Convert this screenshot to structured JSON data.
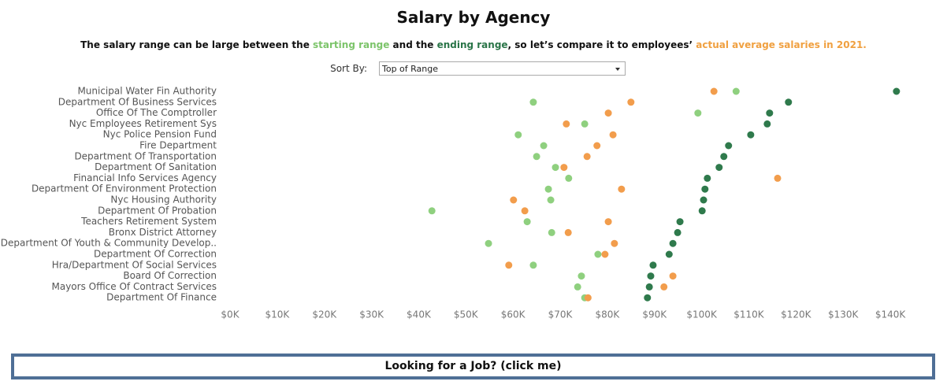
{
  "chart_data": {
    "type": "dot",
    "title": "Salary by Agency",
    "subtitle": [
      {
        "text": "The salary range can be large between the ",
        "color": "#111111"
      },
      {
        "text": "starting range",
        "color": "#7cc46a"
      },
      {
        "text": " and the ",
        "color": "#111111"
      },
      {
        "text": "ending range",
        "color": "#2a7548"
      },
      {
        "text": ", so let’s compare it to employees’ ",
        "color": "#111111"
      },
      {
        "text": "actual average salaries in 2021.",
        "color": "#f0a040"
      }
    ],
    "sort_label": "Sort By:",
    "sort_value": "Top of Range",
    "categories": [
      "Municipal Water Fin Authority",
      "Department Of Business Services",
      "Office Of The Comptroller",
      "Nyc Employees Retirement Sys",
      "Nyc Police Pension Fund",
      "Fire Department",
      "Department Of Transportation",
      "Department Of Sanitation",
      "Financial Info Services Agency",
      "Department Of Environment Protection",
      "Nyc Housing Authority",
      "Department Of Probation",
      "Teachers Retirement System",
      "Bronx District Attorney",
      "Department Of Youth & Community Develop..",
      "Department Of Correction",
      "Hra/Department Of Social Services",
      "Board Of Correction",
      "Mayors Office Of Contract Services",
      "Department Of Finance"
    ],
    "series": [
      {
        "color": "#8fd07f",
        "values": [
          107.3,
          64.3,
          99.2,
          75.2,
          61.1,
          66.5,
          65.0,
          69.0,
          71.8,
          67.5,
          68.0,
          42.8,
          63.0,
          68.2,
          54.8,
          78.0,
          64.3,
          74.5,
          73.7,
          75.2
        ]
      },
      {
        "color": "#2f7a4c",
        "values": [
          141.3,
          118.4,
          114.4,
          113.9,
          110.4,
          105.7,
          104.7,
          103.7,
          101.2,
          100.7,
          100.4,
          100.1,
          95.4,
          94.9,
          93.9,
          93.1,
          89.7,
          89.2,
          88.9,
          88.5
        ]
      },
      {
        "color": "#f29d4c",
        "values": [
          102.6,
          85.0,
          80.2,
          71.3,
          81.2,
          77.8,
          75.7,
          70.8,
          116.1,
          83.0,
          60.1,
          62.5,
          80.2,
          71.7,
          81.5,
          79.5,
          59.1,
          93.9,
          92.0,
          75.9
        ]
      }
    ],
    "xlim": [
      0,
      145
    ],
    "xticks": [
      {
        "value": 0,
        "label": "$0K"
      },
      {
        "value": 10,
        "label": "$10K"
      },
      {
        "value": 20,
        "label": "$20K"
      },
      {
        "value": 30,
        "label": "$30K"
      },
      {
        "value": 40,
        "label": "$40K"
      },
      {
        "value": 50,
        "label": "$50K"
      },
      {
        "value": 60,
        "label": "$60K"
      },
      {
        "value": 70,
        "label": "$70K"
      },
      {
        "value": 80,
        "label": "$80K"
      },
      {
        "value": 90,
        "label": "$90K"
      },
      {
        "value": 100,
        "label": "$100K"
      },
      {
        "value": 110,
        "label": "$110K"
      },
      {
        "value": 120,
        "label": "$120K"
      },
      {
        "value": 130,
        "label": "$130K"
      },
      {
        "value": 140,
        "label": "$140K"
      }
    ],
    "button": "Looking for a Job? (click me)"
  }
}
